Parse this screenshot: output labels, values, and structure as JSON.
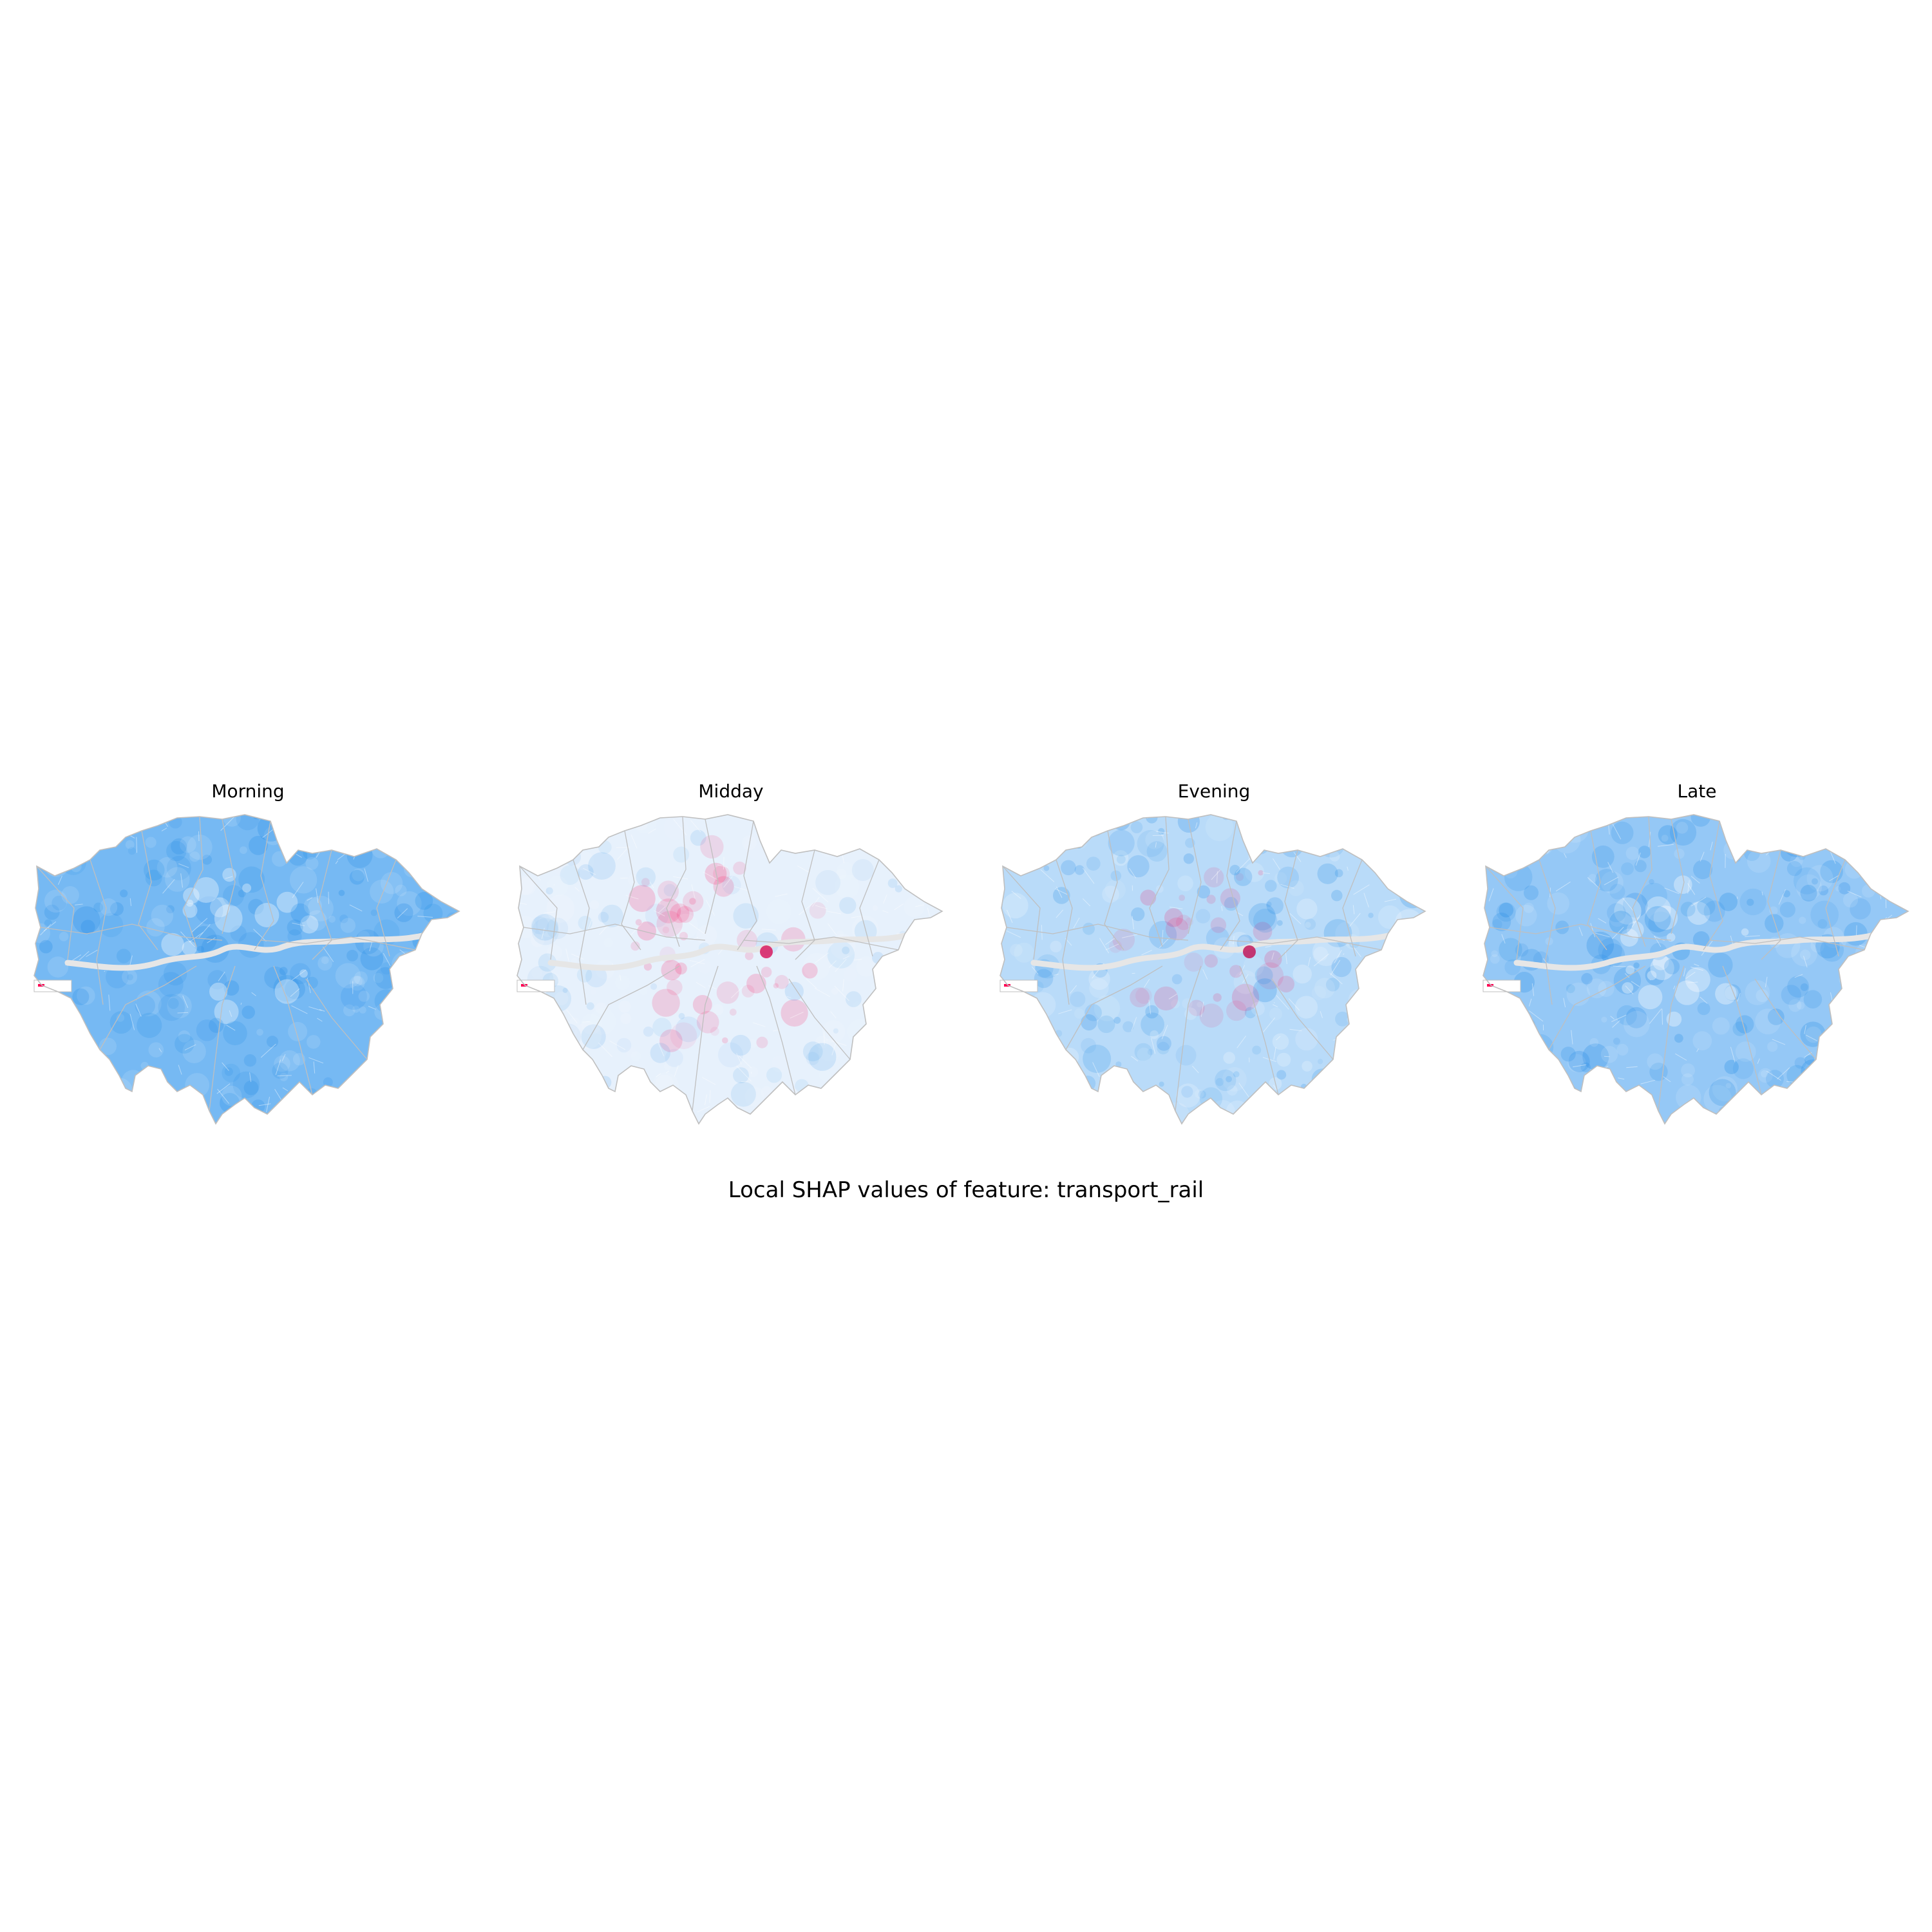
{
  "figure": {
    "suptitle": "Local SHAP values of feature: transport_rail"
  },
  "panels": [
    {
      "title": "Morning",
      "fill": "#6fb5f2",
      "fill_opacity": 0.95,
      "pattern": "network-dense",
      "hotspot": null
    },
    {
      "title": "Midday",
      "fill": "#e4f0fc",
      "fill_opacity": 0.9,
      "pattern": "mixed-pink-center",
      "hotspot": "#d81b60"
    },
    {
      "title": "Evening",
      "fill": "#b3d8f8",
      "fill_opacity": 0.92,
      "pattern": "mixed-blue-pink-center",
      "hotspot": "#c2185b"
    },
    {
      "title": "Late",
      "fill": "#8fc5f5",
      "fill_opacity": 0.95,
      "pattern": "network-dense",
      "hotspot": null
    }
  ],
  "colors": {
    "negative": "#1e88e5",
    "positive": "#ff0052",
    "boundary": "#bfbfbf",
    "river": "#e6e6e6"
  }
}
